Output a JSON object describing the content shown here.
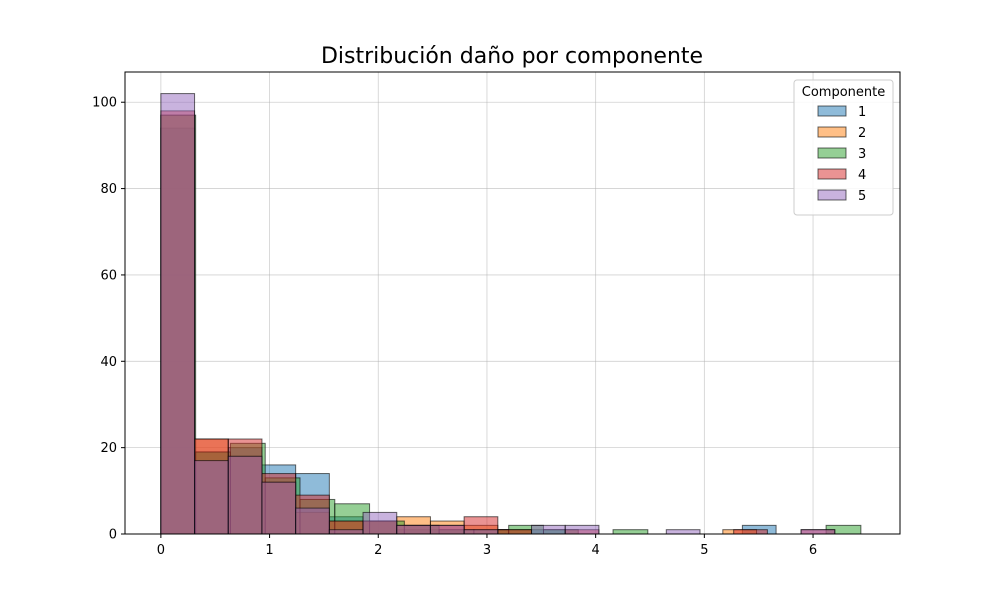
{
  "chart_data": {
    "type": "bar",
    "title": "Distribución daño por componente",
    "xlabel": "",
    "ylabel": "",
    "xlim": [
      -0.33,
      6.8
    ],
    "ylim": [
      0,
      107
    ],
    "xticks": [
      0,
      1,
      2,
      3,
      4,
      5,
      6
    ],
    "yticks": [
      0,
      20,
      40,
      60,
      80,
      100
    ],
    "grid": true,
    "legend": {
      "title": "Componente",
      "position": "top-right"
    },
    "bar_alpha": 0.5,
    "series": [
      {
        "name": "1",
        "color": "#1f77b4",
        "bins": [
          {
            "x0": 0.0,
            "x1": 0.31,
            "value": 94
          },
          {
            "x0": 0.31,
            "x1": 0.62,
            "value": 19
          },
          {
            "x0": 0.62,
            "x1": 0.93,
            "value": 20
          },
          {
            "x0": 0.93,
            "x1": 1.24,
            "value": 16
          },
          {
            "x0": 1.24,
            "x1": 1.55,
            "value": 14
          },
          {
            "x0": 1.55,
            "x1": 1.86,
            "value": 4
          },
          {
            "x0": 1.86,
            "x1": 2.17,
            "value": 3
          },
          {
            "x0": 2.17,
            "x1": 2.48,
            "value": 1
          },
          {
            "x0": 2.48,
            "x1": 2.79,
            "value": 1
          },
          {
            "x0": 2.79,
            "x1": 3.1,
            "value": 0
          },
          {
            "x0": 3.1,
            "x1": 3.41,
            "value": 1
          },
          {
            "x0": 3.41,
            "x1": 3.72,
            "value": 1
          },
          {
            "x0": 5.35,
            "x1": 5.66,
            "value": 2
          }
        ]
      },
      {
        "name": "2",
        "color": "#ff7f0e",
        "bins": [
          {
            "x0": 0.0,
            "x1": 0.31,
            "value": 97
          },
          {
            "x0": 0.31,
            "x1": 0.62,
            "value": 22
          },
          {
            "x0": 0.62,
            "x1": 0.93,
            "value": 18
          },
          {
            "x0": 0.93,
            "x1": 1.24,
            "value": 12
          },
          {
            "x0": 1.24,
            "x1": 1.55,
            "value": 5
          },
          {
            "x0": 1.55,
            "x1": 1.86,
            "value": 3
          },
          {
            "x0": 1.86,
            "x1": 2.17,
            "value": 3
          },
          {
            "x0": 2.17,
            "x1": 2.48,
            "value": 4
          },
          {
            "x0": 2.48,
            "x1": 2.79,
            "value": 3
          },
          {
            "x0": 2.79,
            "x1": 3.1,
            "value": 2
          },
          {
            "x0": 3.1,
            "x1": 3.41,
            "value": 1
          },
          {
            "x0": 5.17,
            "x1": 5.48,
            "value": 1
          }
        ]
      },
      {
        "name": "3",
        "color": "#2ca02c",
        "bins": [
          {
            "x0": 0.0,
            "x1": 0.32,
            "value": 97
          },
          {
            "x0": 0.32,
            "x1": 0.64,
            "value": 19
          },
          {
            "x0": 0.64,
            "x1": 0.96,
            "value": 21
          },
          {
            "x0": 0.96,
            "x1": 1.28,
            "value": 13
          },
          {
            "x0": 1.28,
            "x1": 1.6,
            "value": 8
          },
          {
            "x0": 1.6,
            "x1": 1.92,
            "value": 7
          },
          {
            "x0": 1.92,
            "x1": 2.24,
            "value": 3
          },
          {
            "x0": 2.24,
            "x1": 2.56,
            "value": 2
          },
          {
            "x0": 2.56,
            "x1": 2.88,
            "value": 1
          },
          {
            "x0": 2.88,
            "x1": 3.2,
            "value": 1
          },
          {
            "x0": 3.2,
            "x1": 3.52,
            "value": 2
          },
          {
            "x0": 3.52,
            "x1": 3.84,
            "value": 1
          },
          {
            "x0": 4.16,
            "x1": 4.48,
            "value": 1
          },
          {
            "x0": 6.12,
            "x1": 6.44,
            "value": 2
          }
        ]
      },
      {
        "name": "4",
        "color": "#d62728",
        "bins": [
          {
            "x0": 0.0,
            "x1": 0.31,
            "value": 98
          },
          {
            "x0": 0.31,
            "x1": 0.62,
            "value": 22
          },
          {
            "x0": 0.62,
            "x1": 0.93,
            "value": 22
          },
          {
            "x0": 0.93,
            "x1": 1.24,
            "value": 14
          },
          {
            "x0": 1.24,
            "x1": 1.55,
            "value": 9
          },
          {
            "x0": 1.55,
            "x1": 1.86,
            "value": 3
          },
          {
            "x0": 1.86,
            "x1": 2.17,
            "value": 3
          },
          {
            "x0": 2.17,
            "x1": 2.48,
            "value": 2
          },
          {
            "x0": 2.48,
            "x1": 2.79,
            "value": 2
          },
          {
            "x0": 2.79,
            "x1": 3.1,
            "value": 4
          },
          {
            "x0": 3.1,
            "x1": 3.41,
            "value": 1
          },
          {
            "x0": 3.72,
            "x1": 4.03,
            "value": 1
          },
          {
            "x0": 5.27,
            "x1": 5.58,
            "value": 1
          },
          {
            "x0": 5.89,
            "x1": 6.2,
            "value": 1
          }
        ]
      },
      {
        "name": "5",
        "color": "#9467bd",
        "bins": [
          {
            "x0": 0.0,
            "x1": 0.31,
            "value": 102
          },
          {
            "x0": 0.31,
            "x1": 0.62,
            "value": 17
          },
          {
            "x0": 0.62,
            "x1": 0.93,
            "value": 18
          },
          {
            "x0": 0.93,
            "x1": 1.24,
            "value": 12
          },
          {
            "x0": 1.24,
            "x1": 1.55,
            "value": 6
          },
          {
            "x0": 1.55,
            "x1": 1.86,
            "value": 1
          },
          {
            "x0": 1.86,
            "x1": 2.17,
            "value": 5
          },
          {
            "x0": 2.17,
            "x1": 2.48,
            "value": 2
          },
          {
            "x0": 2.48,
            "x1": 2.79,
            "value": 2
          },
          {
            "x0": 2.79,
            "x1": 3.1,
            "value": 1
          },
          {
            "x0": 3.41,
            "x1": 3.72,
            "value": 2
          },
          {
            "x0": 3.72,
            "x1": 4.03,
            "value": 2
          },
          {
            "x0": 4.65,
            "x1": 4.96,
            "value": 1
          },
          {
            "x0": 5.89,
            "x1": 6.2,
            "value": 1
          }
        ]
      }
    ]
  }
}
